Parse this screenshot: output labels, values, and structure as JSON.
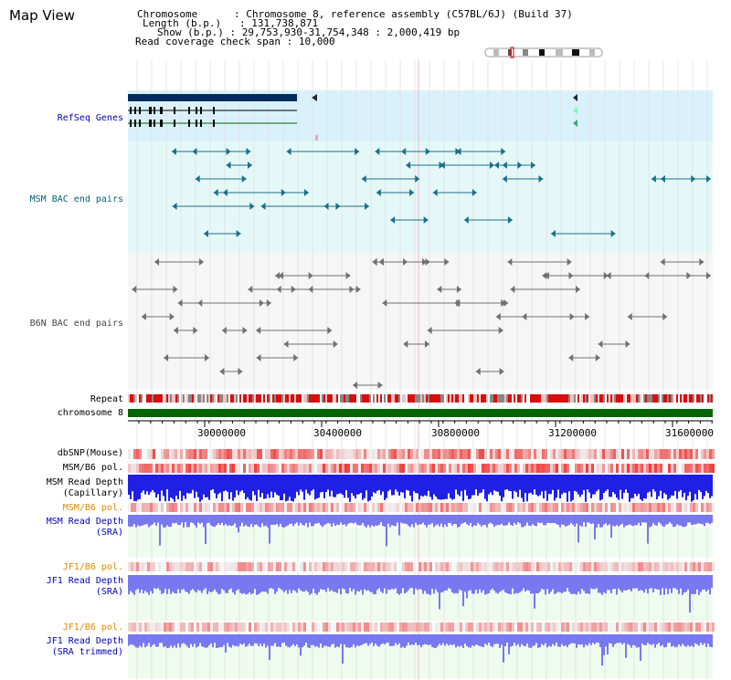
{
  "title": "Map View",
  "info": {
    "chromosome_label": "Chromosome",
    "chromosome_value": "Chromosome 8, reference assembly (C57BL/6J) (Build 37)",
    "length_label": "Length (b.p.)",
    "length_value": "131,738,871",
    "show_label": "Show (b.p.)",
    "show_value": "29,753,930-31,754,348 : 2,000,419 bp",
    "coverage_label": "Read coverage check span",
    "coverage_value": "10,000"
  },
  "tracks": {
    "refseq": "RefSeq Genes",
    "msm_bac": "MSM BAC end pairs",
    "b6n_bac": "B6N BAC end pairs",
    "repeat": "Repeat",
    "chromosome": "chromosome 8",
    "dbsnp": "dbSNP(Mouse)",
    "msm_b6_pol_1": "MSM/B6 pol.",
    "msm_depth_cap_1": "MSM Read Depth",
    "msm_depth_cap_2": "(Capillary)",
    "msm_b6_pol_2": "MSM/B6 pol.",
    "msm_depth_sra_1": "MSM Read Depth",
    "msm_depth_sra_2": "(SRA)",
    "jf1_b6_pol_1": "JF1/B6 pol.",
    "jf1_depth_sra_1": "JF1 Read Depth",
    "jf1_depth_sra_2": "(SRA)",
    "jf1_b6_pol_2": "JF1/B6 pol.",
    "jf1_depth_trim_1": "JF1 Read Depth",
    "jf1_depth_trim_2": "(SRA trimmed)"
  },
  "axis": {
    "ticks": [
      "30000000",
      "30400000",
      "30800000",
      "31200000",
      "31600000"
    ]
  },
  "colors": {
    "refseq_bg": "#d9f1fb",
    "bac_bg": "#e5f8f8",
    "track_bg": "#f6f6f6",
    "chromosome_bar": "#006400",
    "gene_dark": "#002b5c",
    "depth_capillary": "#1f1fe6",
    "depth_sra": "#7878f0",
    "coverage_bg": "#eefbee",
    "pol_red": "#e03030"
  }
}
